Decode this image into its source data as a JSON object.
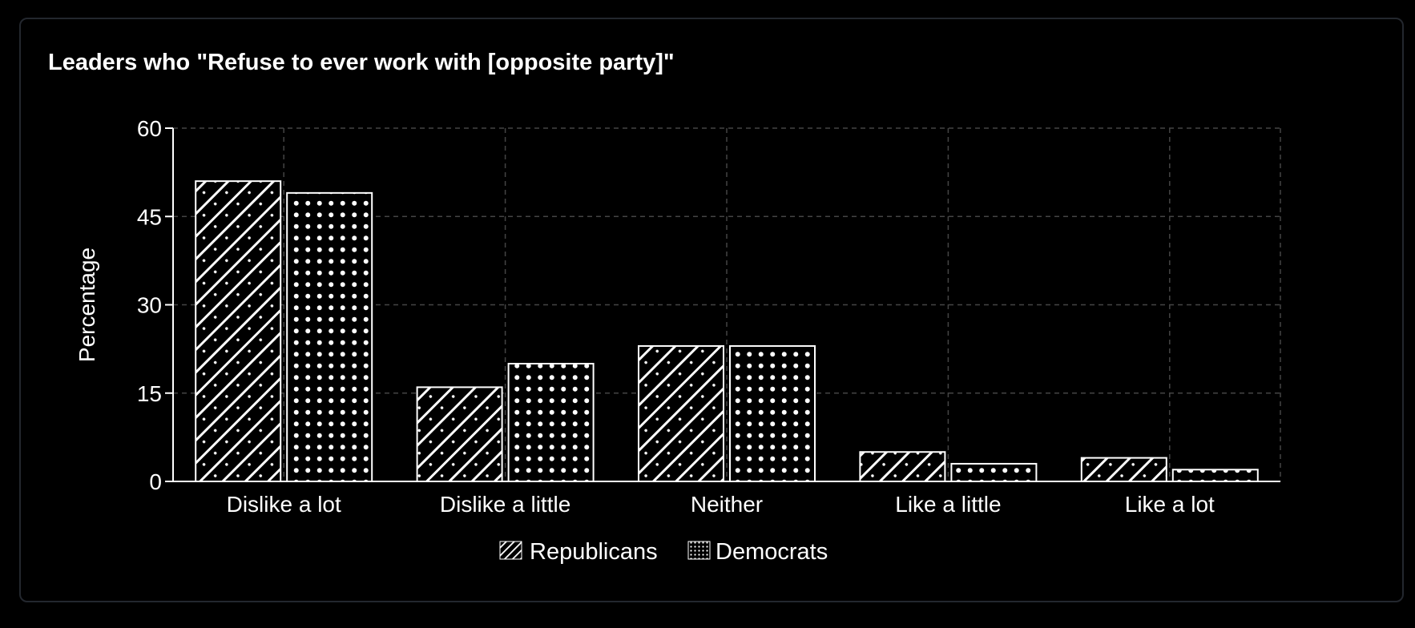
{
  "chart_data": {
    "type": "bar",
    "title": "Leaders who \"Refuse to ever work with [opposite party]\"",
    "xlabel": "",
    "ylabel": "Percentage",
    "categories": [
      "Dislike a lot",
      "Dislike a little",
      "Neither",
      "Like a little",
      "Like a lot"
    ],
    "series": [
      {
        "name": "Republicans",
        "pattern": "diagonal-hatch",
        "values": [
          51,
          16,
          23,
          5,
          4
        ]
      },
      {
        "name": "Democrats",
        "pattern": "dots",
        "values": [
          49,
          20,
          23,
          3,
          2
        ]
      }
    ],
    "ylim": [
      0,
      60
    ],
    "yticks": [
      "0",
      "15",
      "30",
      "45",
      "60"
    ],
    "grid": true,
    "legend_position": "bottom",
    "colors": {
      "background": "#000000",
      "foreground": "#ffffff",
      "grid": "#444444",
      "card_border": "#23272e"
    }
  }
}
